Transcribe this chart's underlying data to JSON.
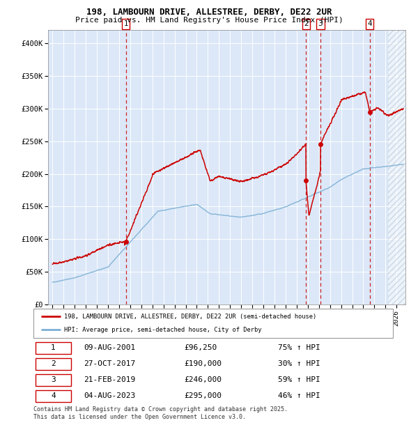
{
  "title1": "198, LAMBOURN DRIVE, ALLESTREE, DERBY, DE22 2UR",
  "title2": "Price paid vs. HM Land Registry's House Price Index (HPI)",
  "ylim": [
    0,
    420000
  ],
  "yticks": [
    0,
    50000,
    100000,
    150000,
    200000,
    250000,
    300000,
    350000,
    400000
  ],
  "ytick_labels": [
    "£0",
    "£50K",
    "£100K",
    "£150K",
    "£200K",
    "£250K",
    "£300K",
    "£350K",
    "£400K"
  ],
  "xlim_start": 1994.6,
  "xlim_end": 2026.8,
  "bg_color": "#dce8f8",
  "hatch_region_start": 2025.25,
  "sale_dates": [
    2001.608,
    2017.831,
    2019.137,
    2023.589
  ],
  "sale_prices": [
    96250,
    190000,
    246000,
    295000
  ],
  "sale_labels": [
    "1",
    "2",
    "3",
    "4"
  ],
  "legend_line1": "198, LAMBOURN DRIVE, ALLESTREE, DERBY, DE22 2UR (semi-detached house)",
  "legend_line2": "HPI: Average price, semi-detached house, City of Derby",
  "table_rows": [
    [
      "1",
      "09-AUG-2001",
      "£96,250",
      "75% ↑ HPI"
    ],
    [
      "2",
      "27-OCT-2017",
      "£190,000",
      "30% ↑ HPI"
    ],
    [
      "3",
      "21-FEB-2019",
      "£246,000",
      "59% ↑ HPI"
    ],
    [
      "4",
      "04-AUG-2023",
      "£295,000",
      "46% ↑ HPI"
    ]
  ],
  "footnote1": "Contains HM Land Registry data © Crown copyright and database right 2025.",
  "footnote2": "This data is licensed under the Open Government Licence v3.0.",
  "red_color": "#cc0000",
  "blue_color": "#7bafd4",
  "white_grid": "#ffffff",
  "xtick_years": [
    1995,
    1996,
    1997,
    1998,
    1999,
    2000,
    2001,
    2002,
    2003,
    2004,
    2005,
    2006,
    2007,
    2008,
    2009,
    2010,
    2011,
    2012,
    2013,
    2014,
    2015,
    2016,
    2017,
    2018,
    2019,
    2020,
    2021,
    2022,
    2023,
    2024,
    2025,
    2026
  ]
}
